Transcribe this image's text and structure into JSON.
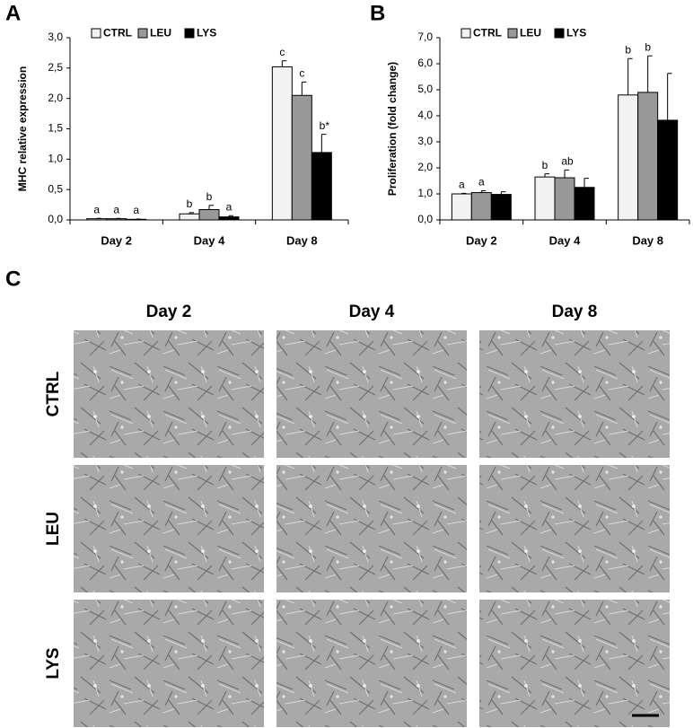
{
  "panel_labels": [
    "A",
    "B",
    "C"
  ],
  "chart_data": [
    {
      "type": "bar",
      "ylabel": "MHC relative expression",
      "categories": [
        "Day 2",
        "Day 4",
        "Day 8"
      ],
      "series": [
        {
          "name": "CTRL",
          "color": "#f2f2f2",
          "values": [
            0.02,
            0.1,
            2.52
          ],
          "errors": [
            0.005,
            0.02,
            0.1
          ],
          "letters": [
            "a",
            "b",
            "c"
          ]
        },
        {
          "name": "LEU",
          "color": "#999999",
          "values": [
            0.02,
            0.17,
            2.05
          ],
          "errors": [
            0.005,
            0.07,
            0.22
          ],
          "letters": [
            "a",
            "b",
            "c"
          ]
        },
        {
          "name": "LYS",
          "color": "#000000",
          "values": [
            0.01,
            0.05,
            1.11
          ],
          "errors": [
            0.005,
            0.02,
            0.3
          ],
          "letters": [
            "a",
            "a",
            "b*"
          ]
        }
      ],
      "ylim": [
        0,
        3
      ],
      "yticks": [
        {
          "value": 0,
          "label": "0,0"
        },
        {
          "value": 0.5,
          "label": "0,5"
        },
        {
          "value": 1,
          "label": "1,0"
        },
        {
          "value": 1.5,
          "label": "1,5"
        },
        {
          "value": 2,
          "label": "2,0"
        },
        {
          "value": 2.5,
          "label": "2,5"
        },
        {
          "value": 3,
          "label": "3,0"
        }
      ],
      "grid": false,
      "legend": "top"
    },
    {
      "type": "bar",
      "ylabel": "Proliferation (fold change)",
      "categories": [
        "Day 2",
        "Day 4",
        "Day 8"
      ],
      "series": [
        {
          "name": "CTRL",
          "color": "#f2f2f2",
          "values": [
            1.0,
            1.65,
            4.8
          ],
          "errors": [
            0.02,
            0.12,
            1.4
          ],
          "letters": [
            "a",
            "b",
            "b"
          ]
        },
        {
          "name": "LEU",
          "color": "#999999",
          "values": [
            1.05,
            1.62,
            4.9
          ],
          "errors": [
            0.07,
            0.3,
            1.4
          ],
          "letters": [
            "a",
            "ab",
            "b"
          ]
        },
        {
          "name": "LYS",
          "color": "#000000",
          "values": [
            0.98,
            1.25,
            3.83
          ],
          "errors": [
            0.1,
            0.35,
            1.8
          ],
          "letters": [
            null,
            null,
            null
          ]
        }
      ],
      "ylim": [
        0,
        7
      ],
      "yticks": [
        {
          "value": 0,
          "label": "0,0"
        },
        {
          "value": 1,
          "label": "1,0"
        },
        {
          "value": 2,
          "label": "2,0"
        },
        {
          "value": 3,
          "label": "3,0"
        },
        {
          "value": 4,
          "label": "4,0"
        },
        {
          "value": 5,
          "label": "5,0"
        },
        {
          "value": 6,
          "label": "6,0"
        },
        {
          "value": 7,
          "label": "7,0"
        }
      ],
      "grid": false,
      "legend": "top"
    }
  ],
  "image_grid": {
    "columns": [
      "Day 2",
      "Day 4",
      "Day 8"
    ],
    "rows": [
      "CTRL",
      "LEU",
      "LYS"
    ]
  }
}
